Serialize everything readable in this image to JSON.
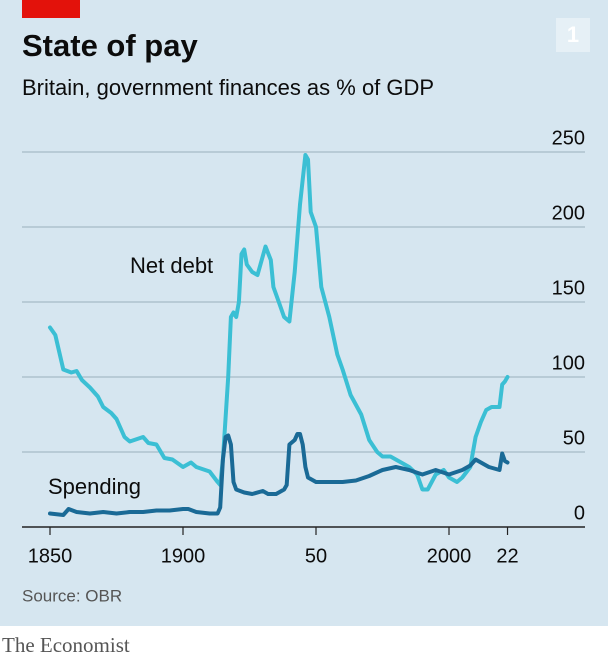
{
  "chart_data": {
    "type": "line",
    "badge": "1",
    "title": "State of pay",
    "subtitle": "Britain, government finances as % of GDP",
    "source": "Source: OBR",
    "brand": "The Economist",
    "xlim": [
      1840,
      2050
    ],
    "xticks": [
      1850,
      1900,
      {
        "value": 1950,
        "label": "50"
      },
      2000,
      {
        "value": 2022,
        "label": "22"
      }
    ],
    "ylim": [
      0,
      250
    ],
    "yticks": [
      0,
      50,
      100,
      150,
      200,
      250
    ],
    "grid": true,
    "series": [
      {
        "name": "Net debt",
        "color": "#3bbfd4",
        "x": [
          1850,
          1852,
          1855,
          1858,
          1860,
          1862,
          1865,
          1868,
          1870,
          1873,
          1875,
          1878,
          1880,
          1885,
          1887,
          1890,
          1893,
          1896,
          1900,
          1903,
          1905,
          1910,
          1913,
          1914,
          1915,
          1917,
          1918,
          1919,
          1920,
          1921,
          1922,
          1923,
          1924,
          1926,
          1928,
          1931,
          1933,
          1934,
          1936,
          1938,
          1940,
          1942,
          1944,
          1946,
          1947,
          1948,
          1950,
          1952,
          1955,
          1958,
          1960,
          1963,
          1967,
          1970,
          1973,
          1975,
          1978,
          1980,
          1983,
          1985,
          1988,
          1990,
          1992,
          1995,
          1998,
          2000,
          2003,
          2005,
          2008,
          2010,
          2012,
          2014,
          2016,
          2018,
          2019,
          2020,
          2021,
          2022
        ],
        "values": [
          133,
          128,
          105,
          103,
          104,
          98,
          93,
          87,
          80,
          76,
          72,
          60,
          57,
          60,
          56,
          55,
          46,
          45,
          40,
          43,
          40,
          37,
          30,
          28,
          45,
          100,
          140,
          143,
          140,
          150,
          182,
          185,
          175,
          170,
          168,
          187,
          178,
          160,
          150,
          140,
          137,
          170,
          215,
          248,
          245,
          210,
          200,
          160,
          140,
          115,
          105,
          88,
          75,
          58,
          50,
          47,
          47,
          45,
          42,
          40,
          35,
          25,
          25,
          35,
          38,
          33,
          30,
          33,
          40,
          60,
          70,
          78,
          80,
          80,
          80,
          95,
          97,
          100
        ]
      },
      {
        "name": "Spending",
        "color": "#1a6a96",
        "x": [
          1850,
          1855,
          1857,
          1860,
          1865,
          1870,
          1875,
          1880,
          1885,
          1890,
          1895,
          1900,
          1902,
          1905,
          1910,
          1913,
          1914,
          1915,
          1916,
          1917,
          1918,
          1919,
          1920,
          1923,
          1926,
          1930,
          1932,
          1935,
          1938,
          1939,
          1940,
          1942,
          1943,
          1944,
          1945,
          1946,
          1947,
          1950,
          1955,
          1960,
          1965,
          1970,
          1975,
          1980,
          1985,
          1990,
          1995,
          2000,
          2005,
          2008,
          2010,
          2012,
          2015,
          2019,
          2020,
          2021,
          2022
        ],
        "values": [
          9,
          8,
          12,
          10,
          9,
          10,
          9,
          10,
          10,
          11,
          11,
          12,
          12,
          10,
          9,
          9,
          13,
          45,
          60,
          61,
          55,
          30,
          25,
          23,
          22,
          24,
          22,
          22,
          25,
          28,
          55,
          58,
          62,
          62,
          55,
          40,
          33,
          30,
          30,
          30,
          31,
          34,
          38,
          40,
          38,
          35,
          38,
          35,
          38,
          41,
          45,
          43,
          40,
          38,
          49,
          44,
          43
        ]
      }
    ]
  }
}
